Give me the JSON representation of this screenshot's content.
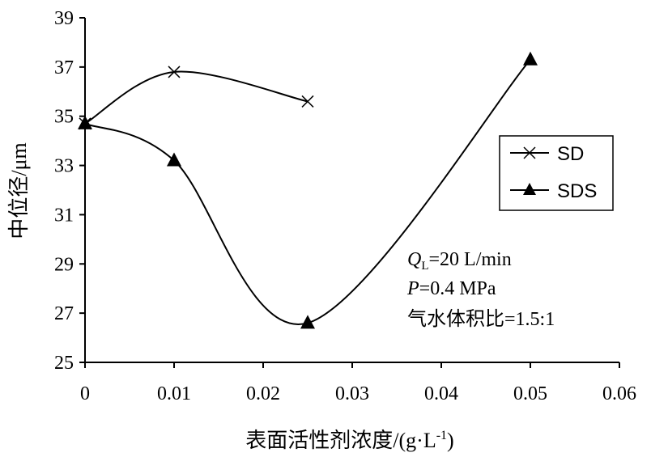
{
  "chart_data": {
    "type": "line",
    "title": "",
    "xlabel": "表面活性剂浓度/(g·L",
    "xlabel_sup": "-1",
    "xlabel_tail": ")",
    "ylabel": "中位径/μm",
    "xlim": [
      0,
      0.06
    ],
    "ylim": [
      25,
      39
    ],
    "xticks": [
      "0",
      "0.01",
      "0.02",
      "0.03",
      "0.04",
      "0.05",
      "0.06"
    ],
    "xtick_values": [
      0,
      0.01,
      0.02,
      0.03,
      0.04,
      0.05,
      0.06
    ],
    "yticks": [
      "25",
      "27",
      "29",
      "31",
      "33",
      "35",
      "37",
      "39"
    ],
    "ytick_values": [
      25,
      27,
      29,
      31,
      33,
      35,
      37,
      39
    ],
    "grid": false,
    "legend_position": "right",
    "series": [
      {
        "name": "SD",
        "marker": "x",
        "x": [
          0,
          0.01,
          0.025
        ],
        "y": [
          34.7,
          36.8,
          35.6
        ]
      },
      {
        "name": "SDS",
        "marker": "triangle",
        "x": [
          0,
          0.01,
          0.025,
          0.05
        ],
        "y": [
          34.7,
          33.2,
          26.6,
          37.3
        ]
      }
    ],
    "annotations": {
      "q_symbol": "Q",
      "q_sub": "L",
      "q_value": "=20 L/min",
      "p_symbol": "P",
      "p_value": "=0.4 MPa",
      "ratio": "气水体积比=1.5:1"
    }
  }
}
